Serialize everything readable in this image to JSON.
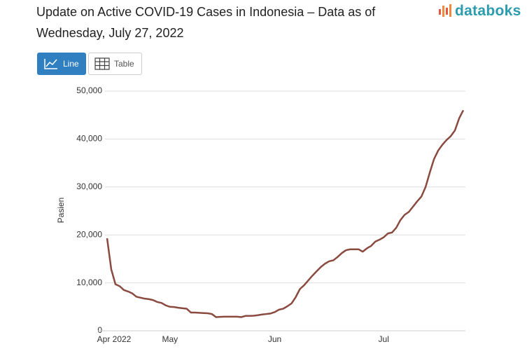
{
  "ui": {
    "logo": "databoks",
    "buttons": [
      "Line",
      "Table"
    ]
  },
  "chart_data": {
    "type": "line",
    "title": "Update on Active COVID-19 Cases in Indonesia – Data as of Wednesday, July 27, 2022",
    "y_label": "Pasien",
    "categories": [
      "Apr 2022",
      null,
      null,
      null,
      null,
      null,
      null,
      null,
      null,
      null,
      null,
      null,
      null,
      null,
      null,
      "May",
      null,
      null,
      null,
      null,
      null,
      null,
      null,
      null,
      null,
      null,
      null,
      null,
      null,
      null,
      null,
      null,
      null,
      null,
      null,
      null,
      null,
      null,
      null,
      null,
      "Jun",
      null,
      null,
      null,
      null,
      null,
      null,
      null,
      null,
      null,
      null,
      null,
      null,
      null,
      null,
      null,
      null,
      null,
      null,
      null,
      null,
      null,
      null,
      null,
      null,
      null,
      "Jul",
      null,
      null,
      null,
      null,
      null,
      null,
      null,
      null,
      null,
      null,
      null,
      null,
      null,
      null,
      null,
      null,
      null,
      null,
      null
    ],
    "series": [
      {
        "name": "Pasien",
        "color": "#8a4a3f",
        "values": [
          19300,
          12800,
          9700,
          9300,
          8500,
          8200,
          7800,
          7100,
          6900,
          6700,
          6600,
          6400,
          6000,
          5800,
          5300,
          5000,
          4950,
          4800,
          4700,
          4600,
          3800,
          3800,
          3750,
          3700,
          3650,
          3500,
          2850,
          2900,
          2950,
          2950,
          2950,
          2950,
          2850,
          3100,
          3100,
          3150,
          3250,
          3400,
          3500,
          3600,
          3900,
          4400,
          4600,
          5100,
          5700,
          7000,
          8700,
          9500,
          10500,
          11500,
          12400,
          13300,
          14000,
          14500,
          14700,
          15400,
          16200,
          16800,
          17000,
          17000,
          17000,
          16500,
          17200,
          17700,
          18600,
          19000,
          19500,
          20300,
          20500,
          21500,
          23100,
          24200,
          24800,
          25900,
          27000,
          28000,
          30000,
          33000,
          35800,
          37600,
          38800,
          39800,
          40600,
          41800,
          44300,
          46000
        ]
      }
    ],
    "ylim": [
      0,
      50000
    ],
    "yticks": [
      0,
      {
        "value": 10000,
        "label": "10,000"
      },
      {
        "value": 20000,
        "label": "20,000"
      },
      {
        "value": 30000,
        "label": "30,000"
      },
      {
        "value": 40000,
        "label": "40,000"
      },
      {
        "value": 50000,
        "label": "50,000"
      }
    ],
    "grid": true
  }
}
